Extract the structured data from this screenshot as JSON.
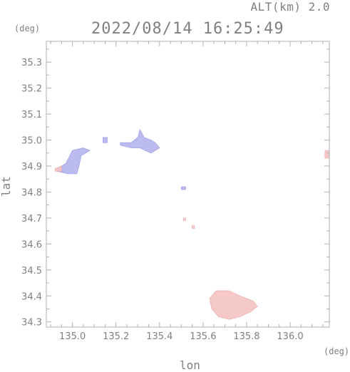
{
  "header": {
    "altitude": "ALT(km) 2.0",
    "timestamp": "2022/08/14 16:25:49"
  },
  "axes": {
    "y_unit": "(deg)",
    "x_unit": "(deg)",
    "x_title": "lon",
    "y_title": "lat"
  },
  "chart_data": {
    "type": "heatmap",
    "xlim": [
      134.88,
      136.18
    ],
    "ylim": [
      34.28,
      35.38
    ],
    "x_ticks": [
      "135.0",
      "135.2",
      "135.4",
      "135.6",
      "135.8",
      "136.0"
    ],
    "y_ticks": [
      "34.3",
      "34.4",
      "34.5",
      "34.6",
      "34.7",
      "34.8",
      "34.9",
      "35.0",
      "35.1",
      "35.2",
      "35.3"
    ],
    "colors": {
      "negative": "#b4b4ef",
      "positive": "#f6c4c4",
      "frame": "#b0b0b0"
    },
    "echoes": [
      {
        "sign": "negative",
        "points": [
          [
            134.93,
            34.89
          ],
          [
            134.97,
            34.91
          ],
          [
            135.0,
            34.96
          ],
          [
            135.05,
            34.97
          ],
          [
            135.08,
            34.96
          ],
          [
            135.04,
            34.94
          ],
          [
            135.03,
            34.9
          ],
          [
            135.02,
            34.87
          ],
          [
            134.98,
            34.87
          ],
          [
            134.93,
            34.88
          ]
        ]
      },
      {
        "sign": "positive",
        "points": [
          [
            134.92,
            34.89
          ],
          [
            134.95,
            34.9
          ],
          [
            134.95,
            34.88
          ],
          [
            134.92,
            34.88
          ]
        ]
      },
      {
        "sign": "negative",
        "points": [
          [
            135.14,
            35.01
          ],
          [
            135.16,
            35.01
          ],
          [
            135.16,
            34.99
          ],
          [
            135.14,
            34.99
          ]
        ]
      },
      {
        "sign": "negative",
        "points": [
          [
            135.22,
            34.99
          ],
          [
            135.27,
            34.99
          ],
          [
            135.3,
            35.01
          ],
          [
            135.31,
            35.04
          ],
          [
            135.33,
            35.01
          ],
          [
            135.36,
            35.0
          ],
          [
            135.38,
            34.99
          ],
          [
            135.4,
            34.97
          ],
          [
            135.36,
            34.95
          ],
          [
            135.31,
            34.97
          ],
          [
            135.27,
            34.97
          ],
          [
            135.22,
            34.98
          ]
        ]
      },
      {
        "sign": "positive",
        "points": [
          [
            135.51,
            34.7
          ],
          [
            135.52,
            34.7
          ],
          [
            135.52,
            34.69
          ],
          [
            135.51,
            34.69
          ]
        ]
      },
      {
        "sign": "positive",
        "points": [
          [
            135.55,
            34.67
          ],
          [
            135.56,
            34.67
          ],
          [
            135.56,
            34.66
          ],
          [
            135.55,
            34.66
          ]
        ]
      },
      {
        "sign": "negative",
        "points": [
          [
            135.5,
            34.82
          ],
          [
            135.52,
            34.82
          ],
          [
            135.52,
            34.81
          ],
          [
            135.5,
            34.81
          ]
        ]
      },
      {
        "sign": "positive",
        "points": [
          [
            135.63,
            34.39
          ],
          [
            135.66,
            34.42
          ],
          [
            135.72,
            34.42
          ],
          [
            135.77,
            34.4
          ],
          [
            135.83,
            34.38
          ],
          [
            135.85,
            34.36
          ],
          [
            135.82,
            34.34
          ],
          [
            135.77,
            34.32
          ],
          [
            135.72,
            34.31
          ],
          [
            135.67,
            34.32
          ],
          [
            135.64,
            34.35
          ]
        ]
      },
      {
        "sign": "positive",
        "points": [
          [
            136.16,
            34.96
          ],
          [
            136.18,
            34.96
          ],
          [
            136.18,
            34.93
          ],
          [
            136.16,
            34.93
          ]
        ]
      }
    ]
  }
}
